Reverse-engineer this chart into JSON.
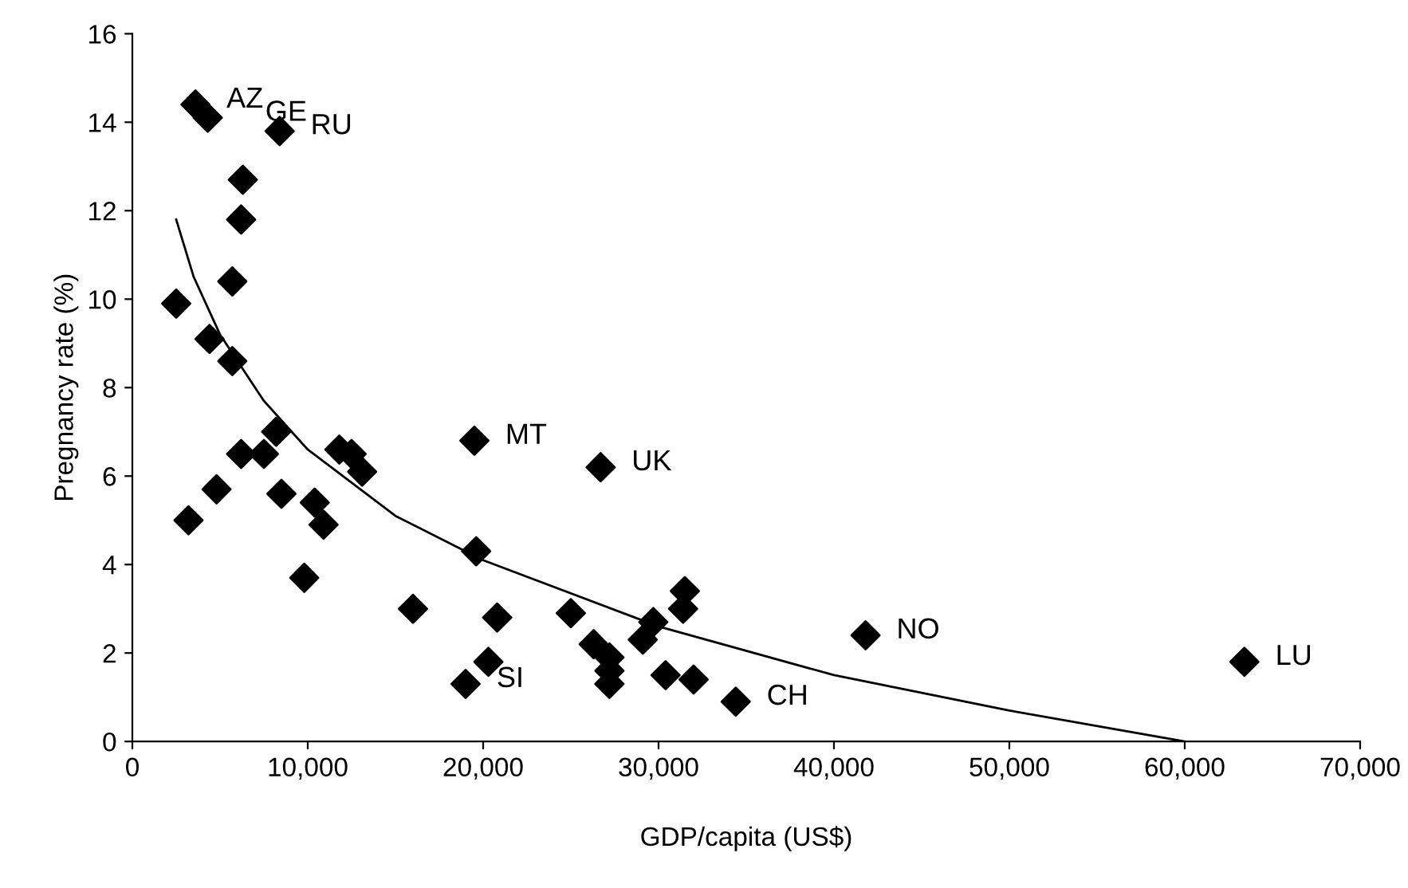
{
  "chart_data": {
    "type": "scatter",
    "xlabel": "GDP/capita (US$)",
    "ylabel": "Pregnancy rate (%)",
    "xlim": [
      0,
      70000
    ],
    "ylim": [
      0,
      16
    ],
    "xticks": [
      {
        "value": 0,
        "label": "0"
      },
      {
        "value": 10000,
        "label": "10,000"
      },
      {
        "value": 20000,
        "label": "20,000"
      },
      {
        "value": 30000,
        "label": "30,000"
      },
      {
        "value": 40000,
        "label": "40,000"
      },
      {
        "value": 50000,
        "label": "50,000"
      },
      {
        "value": 60000,
        "label": "60,000"
      },
      {
        "value": 70000,
        "label": "70,000"
      }
    ],
    "yticks": [
      0,
      2,
      4,
      6,
      8,
      10,
      12,
      14,
      16
    ],
    "grid": false,
    "legend": false,
    "marker": "diamond",
    "series": [
      {
        "color": "#000000",
        "x": [
          3600,
          4300,
          8400,
          6300,
          6200,
          5700,
          2500,
          4400,
          5700,
          8200,
          6200,
          7500,
          11800,
          12500,
          13100,
          19500,
          26700,
          3200,
          4800,
          8500,
          10400,
          10900,
          9800,
          16000,
          19600,
          20800,
          20300,
          19000,
          25000,
          26300,
          27200,
          27200,
          27200,
          29100,
          29700,
          31400,
          31500,
          30400,
          32000,
          34400,
          41800,
          63400
        ],
        "values": [
          14.4,
          14.1,
          13.8,
          12.7,
          11.8,
          10.4,
          9.9,
          9.1,
          8.6,
          7.0,
          6.5,
          6.5,
          6.6,
          6.5,
          6.1,
          6.8,
          6.2,
          5.0,
          5.7,
          5.6,
          5.4,
          4.9,
          3.7,
          3.0,
          4.3,
          2.8,
          1.8,
          1.3,
          2.9,
          2.2,
          1.9,
          1.6,
          1.3,
          2.3,
          2.7,
          3.0,
          3.4,
          1.5,
          1.4,
          0.9,
          2.4,
          1.8
        ]
      },
      {
        "type": "line",
        "color": "#000000",
        "marker": "none",
        "line_style": "solid",
        "x": [
          2500,
          3500,
          5000,
          7500,
          10000,
          15000,
          20000,
          30000,
          40000,
          50000,
          60000
        ],
        "values": [
          11.8,
          10.5,
          9.2,
          7.7,
          6.6,
          5.1,
          4.1,
          2.6,
          1.5,
          0.7,
          0.0
        ]
      }
    ],
    "annotations": [
      {
        "text": "AZ",
        "x": 3600,
        "y": 14.4
      },
      {
        "text": "GE",
        "x": 4300,
        "y": 14.1
      },
      {
        "text": "RU",
        "x": 8400,
        "y": 13.8
      },
      {
        "text": "MT",
        "x": 19500,
        "y": 6.8
      },
      {
        "text": "UK",
        "x": 26700,
        "y": 6.2
      },
      {
        "text": "SI",
        "x": 19000,
        "y": 1.3
      },
      {
        "text": "NO",
        "x": 41800,
        "y": 2.4
      },
      {
        "text": "CH",
        "x": 34400,
        "y": 0.9
      },
      {
        "text": "LU",
        "x": 63400,
        "y": 1.8
      }
    ]
  }
}
